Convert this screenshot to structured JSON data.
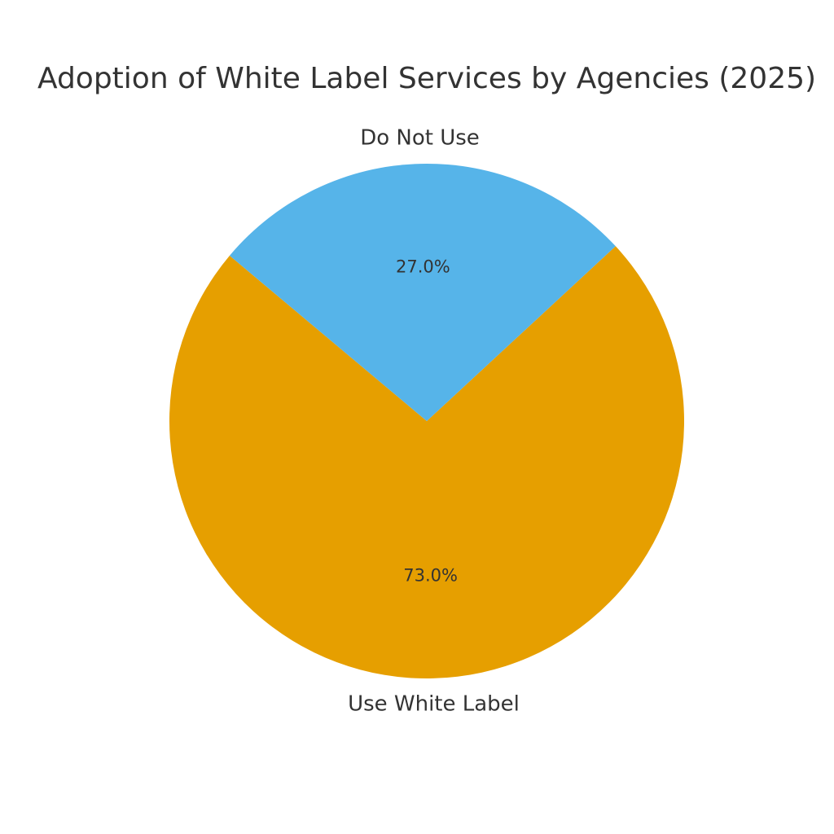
{
  "chart_data": {
    "type": "pie",
    "title": "Adoption of White Label Services by Agencies (2025)",
    "categories": [
      "Use White Label",
      "Do Not Use"
    ],
    "values": [
      73.0,
      27.0
    ],
    "percent_labels": [
      "73.0%",
      "27.0%"
    ],
    "colors": [
      "#E69F00",
      "#56B4E9"
    ],
    "start_angle_deg": 140,
    "direction": "counterclockwise",
    "legend": "none"
  }
}
